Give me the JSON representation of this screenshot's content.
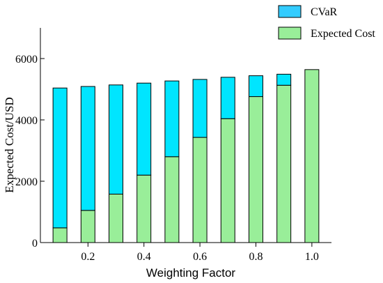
{
  "chart_data": {
    "type": "bar",
    "stacked": true,
    "xlabel": "Weighting Factor",
    "ylabel": "Expected Cost/USD",
    "x": [
      0.1,
      0.2,
      0.3,
      0.4,
      0.5,
      0.6,
      0.7,
      0.8,
      0.9,
      1.0
    ],
    "x_tick_labels": [
      "0.2",
      "0.4",
      "0.6",
      "0.8",
      "1.0"
    ],
    "x_tick_values": [
      0.2,
      0.4,
      0.6,
      0.8,
      1.0
    ],
    "xlim": [
      0.03,
      1.07
    ],
    "y_tick_labels": [
      "0",
      "2000",
      "4000",
      "6000"
    ],
    "y_tick_values": [
      0,
      2000,
      4000,
      6000
    ],
    "ylim": [
      0,
      7000
    ],
    "legend_position": "top-right",
    "series": [
      {
        "name": "Expected Cost",
        "color": "#99EE99",
        "values": [
          480,
          1050,
          1580,
          2200,
          2800,
          3430,
          4040,
          4760,
          5130,
          5640
        ]
      },
      {
        "name": "CVaR",
        "color": "#00E5FF",
        "values": [
          4560,
          4040,
          3560,
          3000,
          2470,
          1890,
          1350,
          680,
          360,
          0
        ]
      }
    ],
    "legend": [
      {
        "name": "CVaR",
        "color": "#33CCFF"
      },
      {
        "name": "Expected Cost",
        "color": "#99EE99"
      }
    ]
  }
}
